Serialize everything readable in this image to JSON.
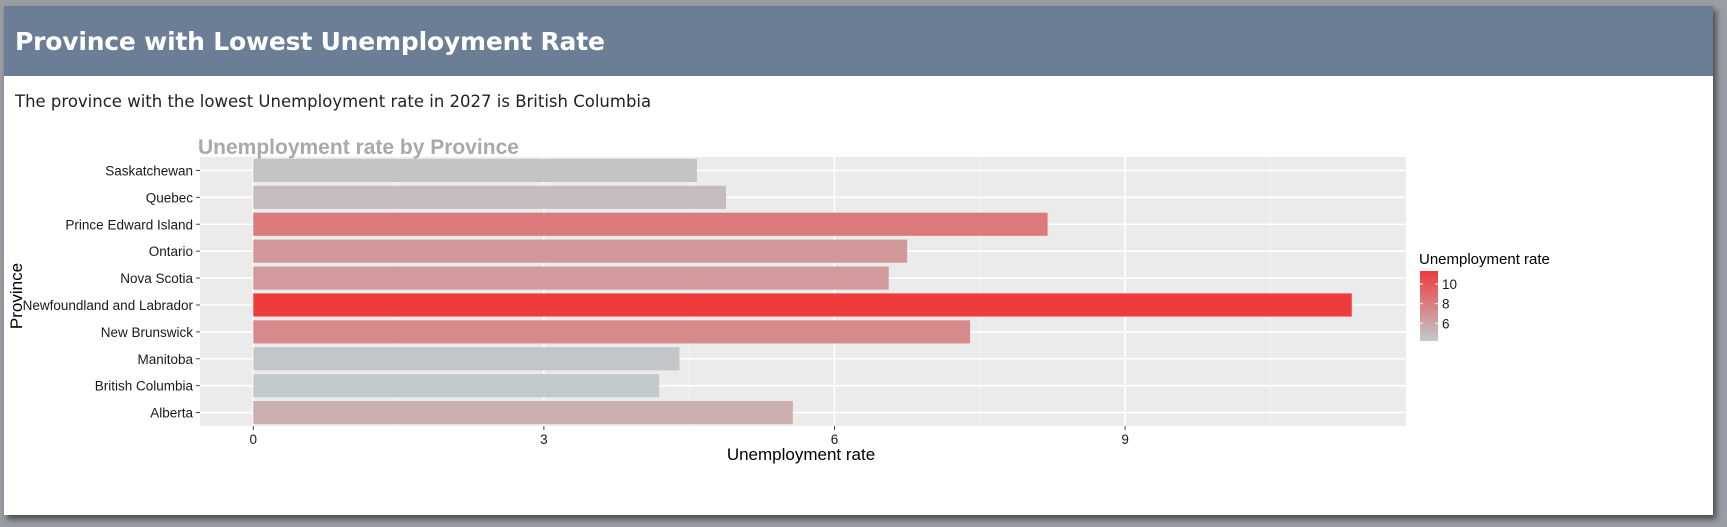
{
  "header": {
    "title": "Province with Lowest Unemployment Rate"
  },
  "summary": {
    "text": "The province with the lowest Unemployment rate in 2027 is British Columbia"
  },
  "chart_data": {
    "type": "bar",
    "orientation": "horizontal",
    "title": "Unemployment rate by Province",
    "xlabel": "Unemployment rate",
    "ylabel": "Province",
    "categories": [
      "Alberta",
      "British Columbia",
      "Manitoba",
      "New Brunswick",
      "Newfoundland and Labrador",
      "Nova Scotia",
      "Ontario",
      "Prince Edward Island",
      "Quebec",
      "Saskatchewan"
    ],
    "values": [
      5.57,
      4.19,
      4.4,
      7.4,
      11.34,
      6.56,
      6.75,
      8.2,
      4.88,
      4.58
    ],
    "xlim": [
      -0.55,
      11.9
    ],
    "xticks": [
      0,
      3,
      6,
      9
    ],
    "grid": true,
    "legend": {
      "title": "Unemployment rate",
      "position": "right",
      "labels": [
        10,
        8,
        6
      ],
      "range": [
        4.19,
        11.34
      ],
      "low_color": "#c2cacc",
      "high_color": "#ee3b3b"
    },
    "colors": {
      "panel": "#ebebeb",
      "grid_major": "#ffffff",
      "grid_minor": "#f4f4f4"
    }
  }
}
